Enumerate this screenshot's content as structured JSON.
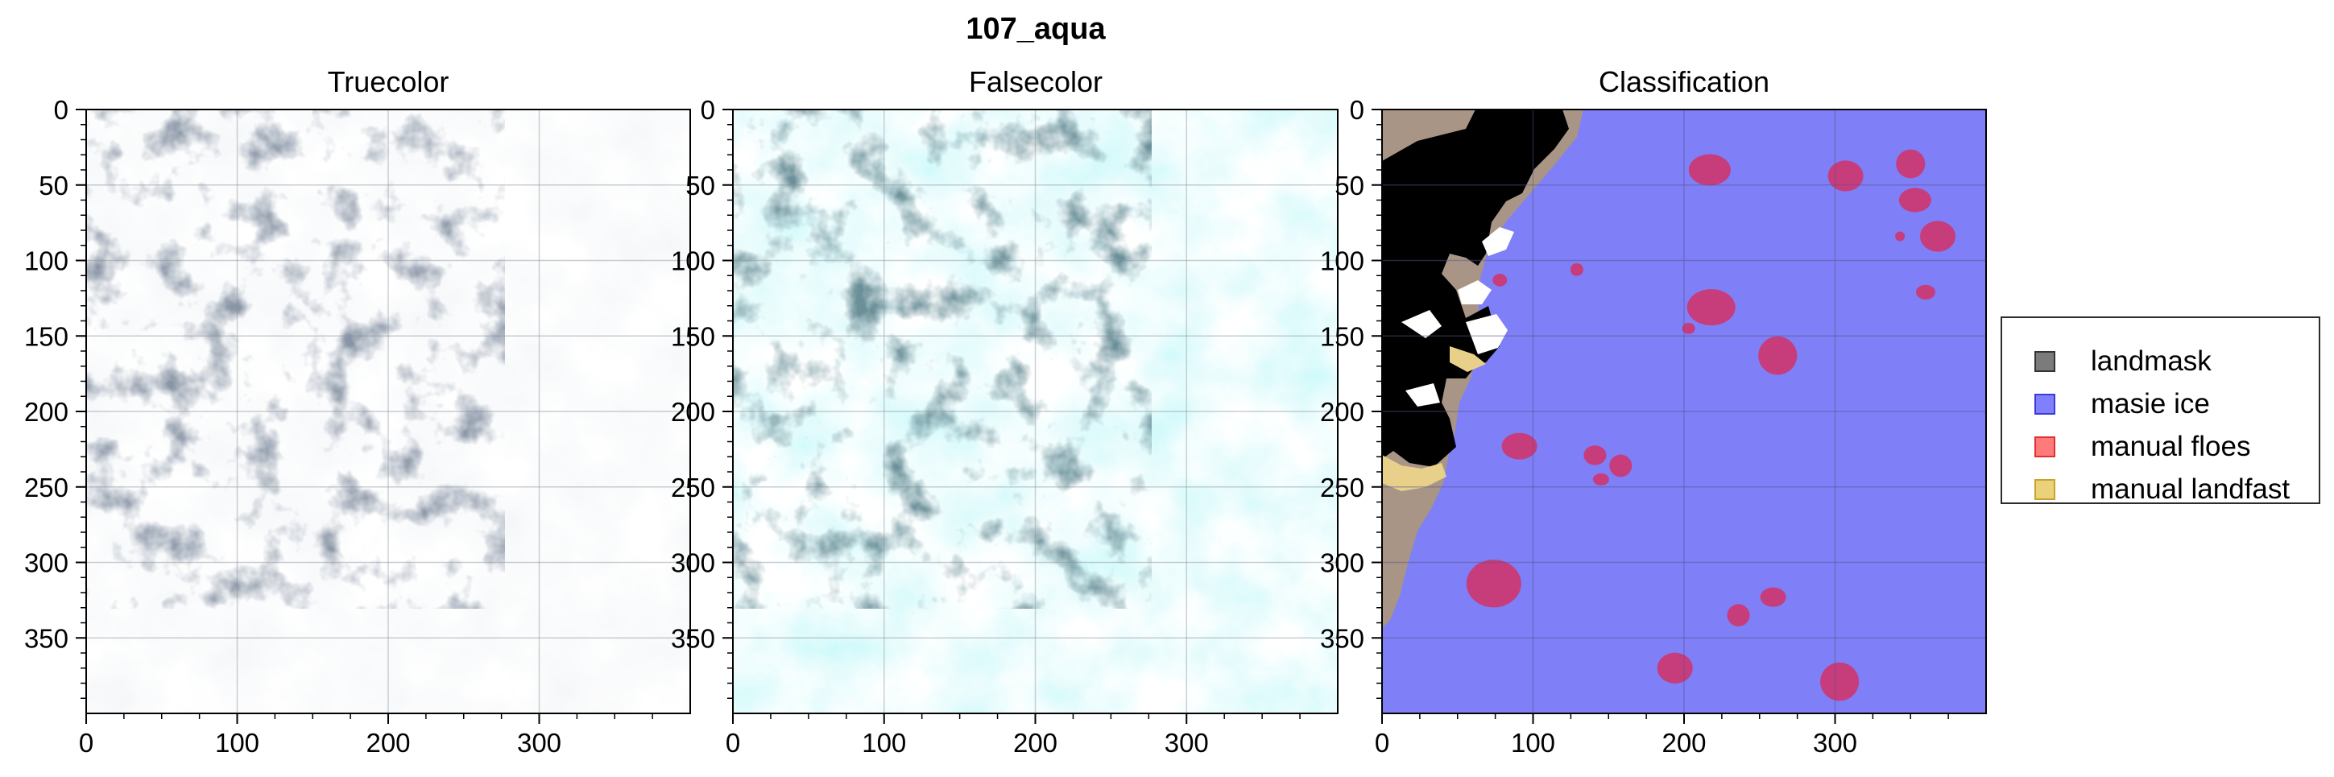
{
  "figure": {
    "title": "107_aqua"
  },
  "chart_data": [
    {
      "type": "image",
      "title": "Truecolor",
      "xlim": [
        0,
        400
      ],
      "ylim": [
        400,
        0
      ],
      "xticks": [
        0,
        100,
        200,
        300
      ],
      "yticks": [
        0,
        50,
        100,
        150,
        200,
        250,
        300,
        350
      ],
      "grid": true,
      "description_palette": {
        "base": "#dfe3e7",
        "dark": "#3d4a5a"
      }
    },
    {
      "type": "image",
      "title": "Falsecolor",
      "xlim": [
        0,
        400
      ],
      "ylim": [
        400,
        0
      ],
      "xticks": [
        0,
        100,
        200,
        300
      ],
      "yticks": [
        0,
        50,
        100,
        150,
        200,
        250,
        300,
        350
      ],
      "grid": true,
      "description_palette": {
        "base": "#7fe9ef",
        "dark": "#1f3b46"
      }
    },
    {
      "type": "image",
      "title": "Classification",
      "xlim": [
        0,
        400
      ],
      "ylim": [
        400,
        0
      ],
      "xticks": [
        0,
        100,
        200,
        300
      ],
      "yticks": [
        0,
        50,
        100,
        150,
        200,
        250,
        300,
        350
      ],
      "grid": true,
      "legend": {
        "position": "right",
        "entries": [
          {
            "label": "landmask",
            "color": "#7b7b7b",
            "edge": "#333333"
          },
          {
            "label": "masie ice",
            "color": "#8080ff",
            "edge": "#3a3ad8"
          },
          {
            "label": "manual floes",
            "color": "#ff7a7a",
            "edge": "#e03030"
          },
          {
            "label": "manual landfast",
            "color": "#ead27a",
            "edge": "#c9a230"
          }
        ]
      },
      "floes": [
        {
          "x": 217,
          "y": 40
        },
        {
          "x": 307,
          "y": 44
        },
        {
          "x": 350,
          "y": 36
        },
        {
          "x": 353,
          "y": 60
        },
        {
          "x": 368,
          "y": 84
        },
        {
          "x": 343,
          "y": 84
        },
        {
          "x": 360,
          "y": 121
        },
        {
          "x": 78,
          "y": 113
        },
        {
          "x": 129,
          "y": 106
        },
        {
          "x": 218,
          "y": 131
        },
        {
          "x": 203,
          "y": 145
        },
        {
          "x": 262,
          "y": 163
        },
        {
          "x": 91,
          "y": 223
        },
        {
          "x": 141,
          "y": 229
        },
        {
          "x": 158,
          "y": 236
        },
        {
          "x": 145,
          "y": 245
        },
        {
          "x": 74,
          "y": 314
        },
        {
          "x": 236,
          "y": 335
        },
        {
          "x": 259,
          "y": 323
        },
        {
          "x": 194,
          "y": 370
        },
        {
          "x": 303,
          "y": 379
        }
      ]
    }
  ],
  "colors": {
    "masie_ice": "#7f7ff7",
    "landmask_on_ice": "#a89585",
    "landmask_on_white": "#000000",
    "sea_dark": "#00007a",
    "floe": "#c73c7a",
    "landfast": "#e8d08a"
  }
}
